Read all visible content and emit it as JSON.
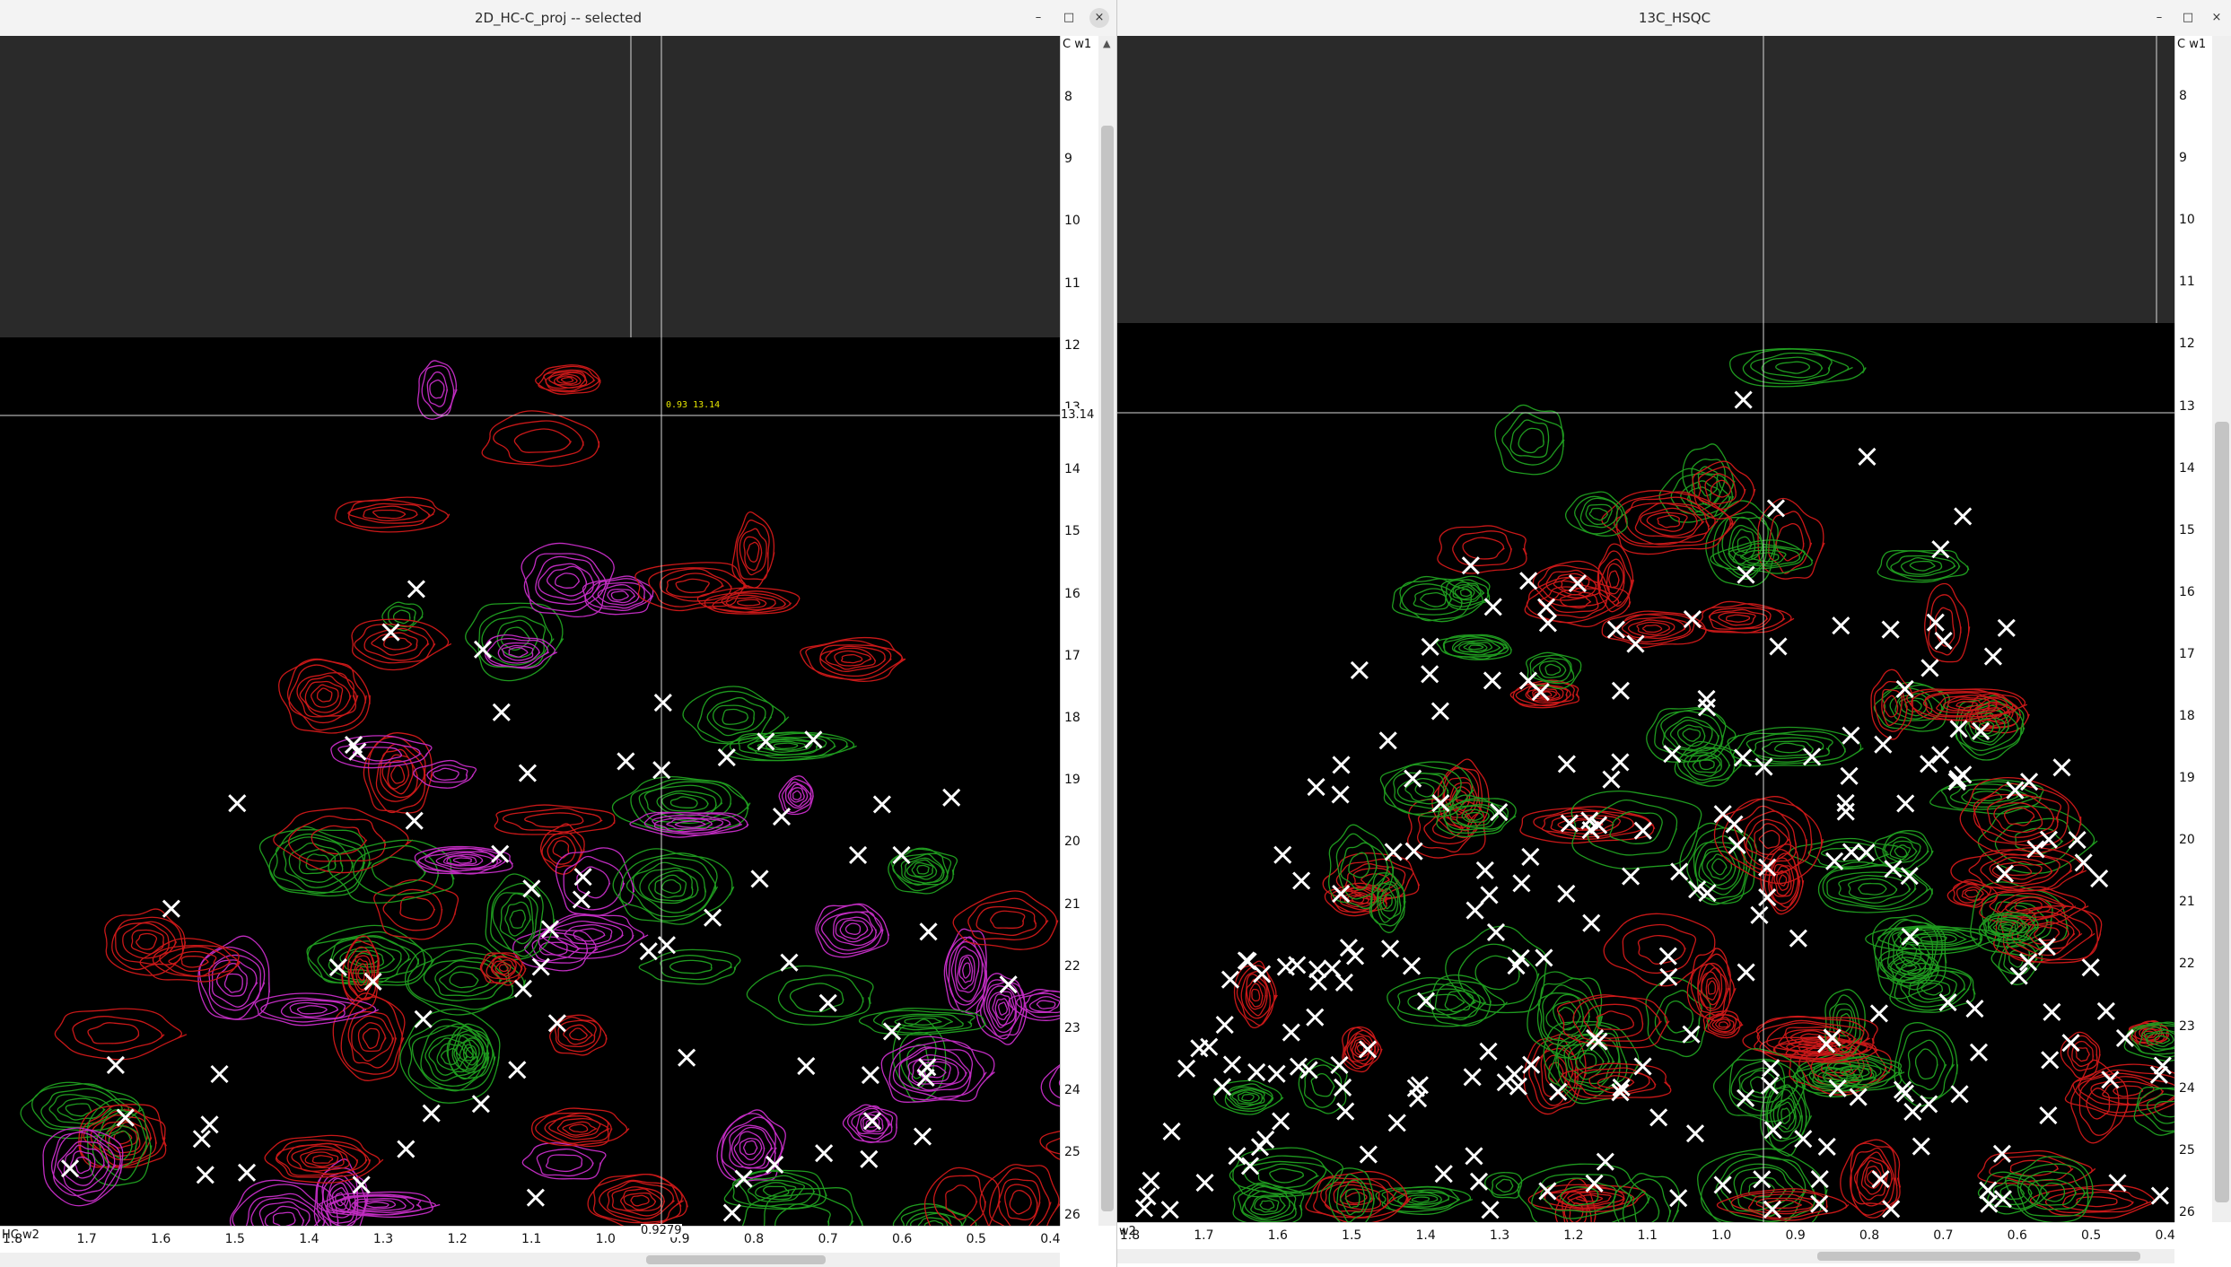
{
  "left_window": {
    "title": "2D_HC-C_proj -- selected",
    "buttons": [
      "–",
      "□",
      "×"
    ],
    "y_axis_label": "C w1",
    "x_axis_label": "HC w2",
    "y_ticks": [
      "8",
      "9",
      "10",
      "11",
      "12",
      "13",
      "14",
      "15",
      "16",
      "17",
      "18",
      "19",
      "20",
      "21",
      "22",
      "23",
      "24",
      "25",
      "26"
    ],
    "x_ticks": [
      "1.8",
      "1.7",
      "1.6",
      "1.5",
      "1.4",
      "1.3",
      "1.2",
      "1.1",
      "1.0",
      "0.9",
      "0.8",
      "0.7",
      "0.6",
      "0.5",
      "0.4"
    ],
    "cursor_x_readout": "0.9279",
    "cursor_y_readout": "13.14",
    "cursor_peak_label_x": "0.93",
    "cursor_peak_label_y": "13.14"
  },
  "right_window": {
    "title": "13C_HSQC",
    "buttons": [
      "–",
      "□",
      "×"
    ],
    "y_axis_label": "C w1",
    "x_axis_label": "w2",
    "y_ticks": [
      "8",
      "9",
      "10",
      "11",
      "12",
      "13",
      "14",
      "15",
      "16",
      "17",
      "18",
      "19",
      "20",
      "21",
      "22",
      "23",
      "24",
      "25",
      "26"
    ],
    "x_ticks": [
      "1.8",
      "1.7",
      "1.6",
      "1.5",
      "1.4",
      "1.3",
      "1.2",
      "1.1",
      "1.0",
      "0.9",
      "0.8",
      "0.7",
      "0.6",
      "0.5",
      "0.4"
    ]
  },
  "colors": {
    "plot_background": "#000000",
    "empty_region": "#2a2a2a",
    "positive_contour": "#1f9a1f",
    "negative_contour": "#c81818",
    "projection_contour": "#c02cc0",
    "peak_marker": "#ffffff",
    "cursor": "#d8d8d8"
  }
}
